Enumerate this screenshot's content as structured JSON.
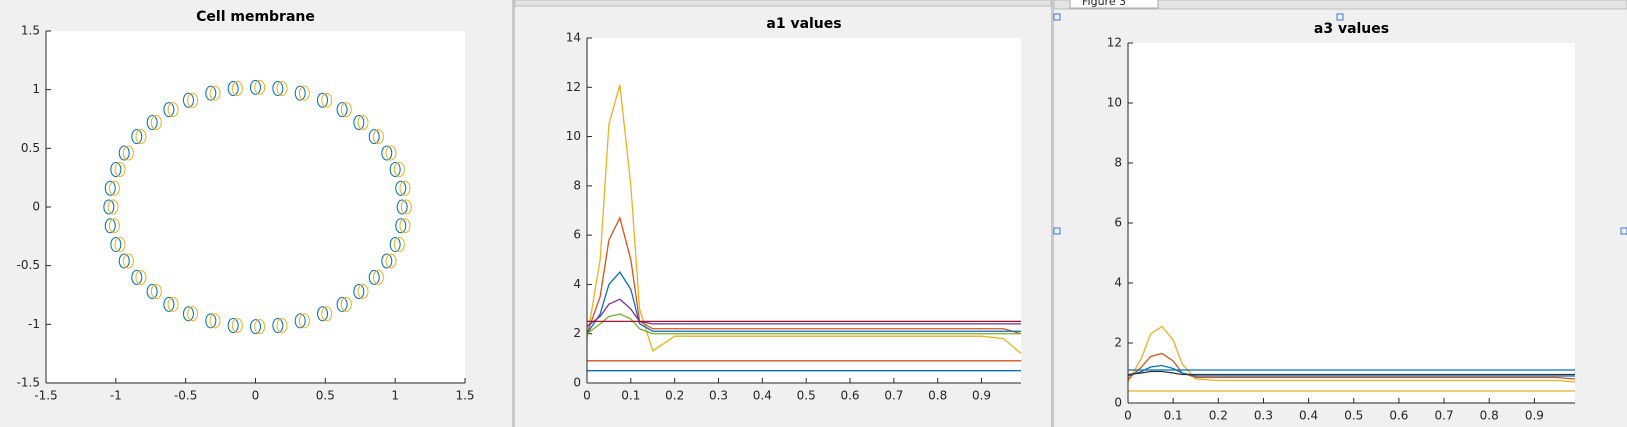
{
  "window_tab": "Figure 3",
  "chart_data": [
    {
      "type": "scatter",
      "title": "Cell membrane",
      "xlim": [
        -1.5,
        1.5
      ],
      "ylim": [
        -1.5,
        1.5
      ],
      "xticks": [
        -1.5,
        -1,
        -0.5,
        0,
        0.5,
        1,
        1.5
      ],
      "yticks": [
        -1.5,
        -1,
        -0.5,
        0,
        0.5,
        1,
        1.5
      ],
      "series": [
        {
          "color": "#0072bd",
          "x": [
            1.05,
            1.04,
            1.0,
            0.94,
            0.85,
            0.74,
            0.62,
            0.48,
            0.32,
            0.16,
            0,
            -0.16,
            -0.32,
            -0.48,
            -0.62,
            -0.74,
            -0.85,
            -0.94,
            -1.0,
            -1.04,
            -1.05,
            -1.04,
            -1.0,
            -0.94,
            -0.85,
            -0.74,
            -0.62,
            -0.48,
            -0.32,
            -0.16,
            0,
            0.16,
            0.32,
            0.48,
            0.62,
            0.74,
            0.85,
            0.94,
            1.0,
            1.04
          ],
          "values": [
            0,
            0.16,
            0.32,
            0.46,
            0.6,
            0.72,
            0.83,
            0.91,
            0.97,
            1.01,
            1.02,
            1.01,
            0.97,
            0.91,
            0.83,
            0.72,
            0.6,
            0.46,
            0.32,
            0.16,
            0,
            -0.16,
            -0.32,
            -0.46,
            -0.6,
            -0.72,
            -0.83,
            -0.91,
            -0.97,
            -1.01,
            -1.02,
            -1.01,
            -0.97,
            -0.91,
            -0.83,
            -0.72,
            -0.6,
            -0.46,
            -0.32,
            -0.16
          ]
        },
        {
          "color": "#edb120",
          "x": [
            1.08,
            1.07,
            1.03,
            0.97,
            0.88,
            0.77,
            0.65,
            0.51,
            0.35,
            0.19,
            0.03,
            -0.13,
            -0.29,
            -0.45,
            -0.59,
            -0.71,
            -0.82,
            -0.91,
            -0.97,
            -1.01,
            -1.02,
            -1.01,
            -0.97,
            -0.91,
            -0.82,
            -0.71,
            -0.59,
            -0.45,
            -0.29,
            -0.13,
            0.03,
            0.19,
            0.35,
            0.51,
            0.65,
            0.77,
            0.88,
            0.97,
            1.03,
            1.07
          ],
          "values": [
            0,
            0.16,
            0.32,
            0.46,
            0.6,
            0.72,
            0.83,
            0.91,
            0.97,
            1.01,
            1.02,
            1.01,
            0.97,
            0.91,
            0.83,
            0.72,
            0.6,
            0.46,
            0.32,
            0.16,
            0,
            -0.16,
            -0.32,
            -0.46,
            -0.6,
            -0.72,
            -0.83,
            -0.91,
            -0.97,
            -1.01,
            -1.02,
            -1.01,
            -0.97,
            -0.91,
            -0.83,
            -0.72,
            -0.6,
            -0.46,
            -0.32,
            -0.16
          ]
        }
      ]
    },
    {
      "type": "line",
      "title": "a1 values",
      "xlim": [
        0,
        0.99
      ],
      "ylim": [
        0,
        14
      ],
      "xticks": [
        0,
        0.1,
        0.2,
        0.3,
        0.4,
        0.5,
        0.6,
        0.7,
        0.8,
        0.9
      ],
      "yticks": [
        0,
        2,
        4,
        6,
        8,
        10,
        12,
        14
      ],
      "x": [
        0,
        0.03,
        0.05,
        0.075,
        0.1,
        0.12,
        0.15,
        0.2,
        0.4,
        0.6,
        0.8,
        0.9,
        0.95,
        0.99
      ],
      "series": [
        {
          "color": "#edb120",
          "values": [
            1.8,
            5,
            10.5,
            12.1,
            8,
            3,
            1.3,
            1.9,
            1.9,
            1.9,
            1.9,
            1.9,
            1.8,
            1.2
          ]
        },
        {
          "color": "#d95319",
          "values": [
            2.0,
            3.5,
            5.8,
            6.7,
            5,
            2.5,
            2.2,
            2.2,
            2.2,
            2.2,
            2.2,
            2.2,
            2.2,
            2.0
          ]
        },
        {
          "color": "#0072bd",
          "values": [
            2.0,
            2.8,
            4,
            4.5,
            3.8,
            2.4,
            2.1,
            2.1,
            2.1,
            2.1,
            2.1,
            2.1,
            2.1,
            2.1
          ]
        },
        {
          "color": "#7e2f8e",
          "values": [
            2.3,
            2.7,
            3.2,
            3.4,
            3.0,
            2.5,
            2.4,
            2.4,
            2.4,
            2.4,
            2.4,
            2.4,
            2.4,
            2.4
          ]
        },
        {
          "color": "#77ac30",
          "values": [
            2.0,
            2.4,
            2.7,
            2.8,
            2.6,
            2.2,
            2.0,
            2.0,
            2.0,
            2.0,
            2.0,
            2.0,
            2.0,
            2.0
          ]
        },
        {
          "color": "#a2142f",
          "values": [
            2.5,
            2.5,
            2.5,
            2.5,
            2.5,
            2.5,
            2.5,
            2.5,
            2.5,
            2.5,
            2.5,
            2.5,
            2.5,
            2.5
          ]
        },
        {
          "color": "#d95319",
          "values": [
            0.9,
            0.9,
            0.9,
            0.9,
            0.9,
            0.9,
            0.9,
            0.9,
            0.9,
            0.9,
            0.9,
            0.9,
            0.9,
            0.9
          ]
        },
        {
          "color": "#0072bd",
          "values": [
            0.5,
            0.5,
            0.5,
            0.5,
            0.5,
            0.5,
            0.5,
            0.5,
            0.5,
            0.5,
            0.5,
            0.5,
            0.5,
            0.5
          ]
        }
      ]
    },
    {
      "type": "line",
      "title": "a3 values",
      "xlim": [
        0,
        0.99
      ],
      "ylim": [
        0,
        12
      ],
      "xticks": [
        0,
        0.1,
        0.2,
        0.3,
        0.4,
        0.5,
        0.6,
        0.7,
        0.8,
        0.9
      ],
      "yticks": [
        0,
        2,
        4,
        6,
        8,
        10,
        12
      ],
      "x": [
        0,
        0.03,
        0.05,
        0.075,
        0.1,
        0.12,
        0.15,
        0.2,
        0.4,
        0.6,
        0.8,
        0.9,
        0.95,
        0.99
      ],
      "series": [
        {
          "color": "#edb120",
          "values": [
            0.7,
            1.5,
            2.3,
            2.55,
            2.1,
            1.3,
            0.8,
            0.75,
            0.75,
            0.75,
            0.75,
            0.75,
            0.75,
            0.7
          ]
        },
        {
          "color": "#d95319",
          "values": [
            0.8,
            1.2,
            1.55,
            1.65,
            1.4,
            1.0,
            0.85,
            0.85,
            0.85,
            0.85,
            0.85,
            0.85,
            0.85,
            0.8
          ]
        },
        {
          "color": "#0072bd",
          "values": [
            0.9,
            1.05,
            1.2,
            1.25,
            1.15,
            1.0,
            0.9,
            0.9,
            0.9,
            0.9,
            0.9,
            0.9,
            0.9,
            0.9
          ]
        },
        {
          "color": "#333333",
          "values": [
            0.95,
            1.0,
            1.05,
            1.05,
            1.0,
            0.95,
            0.95,
            0.95,
            0.95,
            0.95,
            0.95,
            0.95,
            0.95,
            0.95
          ]
        },
        {
          "color": "#0072bd",
          "values": [
            1.1,
            1.1,
            1.1,
            1.1,
            1.1,
            1.1,
            1.1,
            1.1,
            1.1,
            1.1,
            1.1,
            1.1,
            1.1,
            1.1
          ]
        },
        {
          "color": "#edb120",
          "values": [
            0.4,
            0.4,
            0.4,
            0.4,
            0.4,
            0.4,
            0.4,
            0.4,
            0.4,
            0.4,
            0.4,
            0.4,
            0.4,
            0.4
          ]
        }
      ]
    }
  ]
}
